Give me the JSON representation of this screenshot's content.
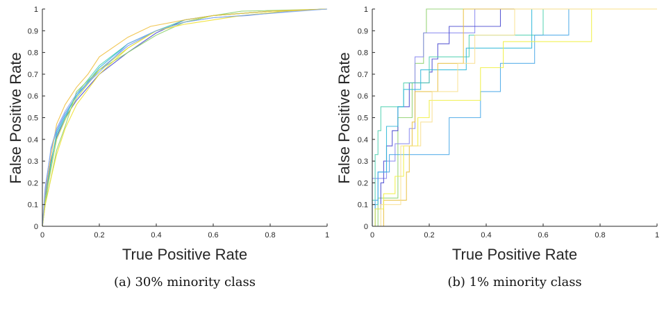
{
  "chart_data": [
    {
      "type": "line",
      "caption": "(a) 30% minority class",
      "xlabel": "True Positive Rate",
      "ylabel": "False Positive Rate",
      "xlim": [
        0,
        1
      ],
      "ylim": [
        0,
        1
      ],
      "xticks": [
        "0",
        "0.2",
        "0.4",
        "0.6",
        "0.8",
        "1"
      ],
      "yticks": [
        "0",
        "0.1",
        "0.2",
        "0.3",
        "0.4",
        "0.5",
        "0.6",
        "0.7",
        "0.8",
        "0.9",
        "1"
      ],
      "grid": false,
      "step": false,
      "series": [
        {
          "color": "#4a4ad0",
          "points": [
            [
              0,
              0
            ],
            [
              0.01,
              0.14
            ],
            [
              0.03,
              0.3
            ],
            [
              0.05,
              0.41
            ],
            [
              0.08,
              0.5
            ],
            [
              0.12,
              0.58
            ],
            [
              0.2,
              0.7
            ],
            [
              0.3,
              0.8
            ],
            [
              0.4,
              0.89
            ],
            [
              0.5,
              0.95
            ],
            [
              0.6,
              0.97
            ],
            [
              0.8,
              0.99
            ],
            [
              1,
              1
            ]
          ]
        },
        {
          "color": "#6a8ef0",
          "points": [
            [
              0,
              0
            ],
            [
              0.01,
              0.18
            ],
            [
              0.03,
              0.35
            ],
            [
              0.05,
              0.44
            ],
            [
              0.08,
              0.52
            ],
            [
              0.12,
              0.6
            ],
            [
              0.2,
              0.72
            ],
            [
              0.3,
              0.83
            ],
            [
              0.4,
              0.9
            ],
            [
              0.5,
              0.94
            ],
            [
              0.6,
              0.96
            ],
            [
              0.72,
              0.97
            ],
            [
              0.87,
              0.99
            ],
            [
              1,
              1
            ]
          ]
        },
        {
          "color": "#2ab0e0",
          "points": [
            [
              0,
              0
            ],
            [
              0.01,
              0.1
            ],
            [
              0.03,
              0.28
            ],
            [
              0.05,
              0.43
            ],
            [
              0.08,
              0.51
            ],
            [
              0.12,
              0.6
            ],
            [
              0.2,
              0.73
            ],
            [
              0.3,
              0.84
            ],
            [
              0.4,
              0.9
            ],
            [
              0.5,
              0.94
            ],
            [
              0.6,
              0.97
            ],
            [
              0.8,
              0.99
            ],
            [
              1,
              1
            ]
          ]
        },
        {
          "color": "#50d0b0",
          "points": [
            [
              0,
              0
            ],
            [
              0.01,
              0.12
            ],
            [
              0.03,
              0.29
            ],
            [
              0.05,
              0.42
            ],
            [
              0.08,
              0.5
            ],
            [
              0.12,
              0.61
            ],
            [
              0.2,
              0.74
            ],
            [
              0.3,
              0.84
            ],
            [
              0.4,
              0.9
            ],
            [
              0.5,
              0.95
            ],
            [
              0.6,
              0.97
            ],
            [
              0.8,
              0.99
            ],
            [
              1,
              1
            ]
          ]
        },
        {
          "color": "#8fd16e",
          "points": [
            [
              0,
              0
            ],
            [
              0.01,
              0.1
            ],
            [
              0.03,
              0.22
            ],
            [
              0.05,
              0.35
            ],
            [
              0.08,
              0.46
            ],
            [
              0.12,
              0.62
            ],
            [
              0.2,
              0.72
            ],
            [
              0.3,
              0.8
            ],
            [
              0.4,
              0.88
            ],
            [
              0.5,
              0.94
            ],
            [
              0.6,
              0.97
            ],
            [
              0.7,
              0.99
            ],
            [
              1,
              1
            ]
          ]
        },
        {
          "color": "#b8d84a",
          "points": [
            [
              0,
              0
            ],
            [
              0.01,
              0.12
            ],
            [
              0.03,
              0.26
            ],
            [
              0.05,
              0.4
            ],
            [
              0.08,
              0.49
            ],
            [
              0.12,
              0.59
            ],
            [
              0.2,
              0.72
            ],
            [
              0.3,
              0.82
            ],
            [
              0.4,
              0.9
            ],
            [
              0.5,
              0.94
            ],
            [
              0.6,
              0.97
            ],
            [
              0.8,
              0.99
            ],
            [
              1,
              1
            ]
          ]
        },
        {
          "color": "#f0e030",
          "points": [
            [
              0,
              0
            ],
            [
              0.01,
              0.1
            ],
            [
              0.03,
              0.22
            ],
            [
              0.05,
              0.33
            ],
            [
              0.08,
              0.45
            ],
            [
              0.12,
              0.56
            ],
            [
              0.2,
              0.7
            ],
            [
              0.3,
              0.82
            ],
            [
              0.4,
              0.9
            ],
            [
              0.5,
              0.93
            ],
            [
              0.6,
              0.95
            ],
            [
              0.7,
              0.97
            ],
            [
              0.85,
              0.99
            ],
            [
              1,
              1
            ]
          ]
        },
        {
          "color": "#f0c040",
          "points": [
            [
              0,
              0
            ],
            [
              0.01,
              0.15
            ],
            [
              0.03,
              0.32
            ],
            [
              0.05,
              0.47
            ],
            [
              0.08,
              0.56
            ],
            [
              0.12,
              0.64
            ],
            [
              0.16,
              0.7
            ],
            [
              0.2,
              0.78
            ],
            [
              0.3,
              0.87
            ],
            [
              0.38,
              0.92
            ],
            [
              0.5,
              0.95
            ],
            [
              0.6,
              0.97
            ],
            [
              0.8,
              0.99
            ],
            [
              1,
              1
            ]
          ]
        },
        {
          "color": "#80a8f0",
          "points": [
            [
              0,
              0
            ],
            [
              0.01,
              0.16
            ],
            [
              0.03,
              0.36
            ],
            [
              0.05,
              0.45
            ],
            [
              0.08,
              0.53
            ],
            [
              0.12,
              0.61
            ],
            [
              0.2,
              0.71
            ],
            [
              0.3,
              0.84
            ],
            [
              0.4,
              0.9
            ],
            [
              0.5,
              0.94
            ],
            [
              0.6,
              0.96
            ],
            [
              0.8,
              0.98
            ],
            [
              1,
              1
            ]
          ]
        }
      ]
    },
    {
      "type": "line",
      "caption": "(b) 1% minority class",
      "xlabel": "True Positive Rate",
      "ylabel": "False Positive Rate",
      "xlim": [
        0,
        1
      ],
      "ylim": [
        0,
        1
      ],
      "xticks": [
        "0",
        "0.2",
        "0.4",
        "0.6",
        "0.8",
        "1"
      ],
      "yticks": [
        "0",
        "0.1",
        "0.2",
        "0.3",
        "0.4",
        "0.5",
        "0.6",
        "0.7",
        "0.8",
        "0.9",
        "1"
      ],
      "grid": false,
      "step": true,
      "series": [
        {
          "color": "#8fd16e",
          "points": [
            [
              0.02,
              0
            ],
            [
              0.02,
              0.13
            ],
            [
              0.09,
              0.5
            ],
            [
              0.14,
              0.66
            ],
            [
              0.15,
              0.75
            ],
            [
              0.18,
              0.89
            ],
            [
              0.19,
              1
            ],
            [
              1,
              1
            ]
          ]
        },
        {
          "color": "#8a8af0",
          "points": [
            [
              0,
              0
            ],
            [
              0,
              0.22
            ],
            [
              0.05,
              0.3
            ],
            [
              0.08,
              0.38
            ],
            [
              0.13,
              0.45
            ],
            [
              0.15,
              0.78
            ],
            [
              0.18,
              0.89
            ],
            [
              0.36,
              1
            ],
            [
              1,
              1
            ]
          ]
        },
        {
          "color": "#4a4ad0",
          "points": [
            [
              0.01,
              0
            ],
            [
              0.01,
              0.08
            ],
            [
              0.03,
              0.2
            ],
            [
              0.04,
              0.3
            ],
            [
              0.05,
              0.37
            ],
            [
              0.07,
              0.44
            ],
            [
              0.09,
              0.55
            ],
            [
              0.13,
              0.66
            ],
            [
              0.2,
              0.71
            ],
            [
              0.21,
              0.77
            ],
            [
              0.23,
              0.84
            ],
            [
              0.27,
              0.92
            ],
            [
              0.45,
              1
            ],
            [
              1,
              1
            ]
          ]
        },
        {
          "color": "#50d0b0",
          "points": [
            [
              0,
              0
            ],
            [
              0,
              0.12
            ],
            [
              0.01,
              0.33
            ],
            [
              0.02,
              0.44
            ],
            [
              0.03,
              0.55
            ],
            [
              0.11,
              0.66
            ],
            [
              0.2,
              0.78
            ],
            [
              0.34,
              0.88
            ],
            [
              0.6,
              1
            ],
            [
              1,
              1
            ]
          ]
        },
        {
          "color": "#30b8d8",
          "points": [
            [
              0,
              0
            ],
            [
              0.01,
              0.1
            ],
            [
              0.02,
              0.25
            ],
            [
              0.05,
              0.46
            ],
            [
              0.09,
              0.55
            ],
            [
              0.11,
              0.63
            ],
            [
              0.17,
              0.72
            ],
            [
              0.33,
              0.82
            ],
            [
              0.56,
              1
            ],
            [
              1,
              1
            ]
          ]
        },
        {
          "color": "#4aa8e8",
          "points": [
            [
              0,
              0
            ],
            [
              0.01,
              0.12
            ],
            [
              0.02,
              0.25
            ],
            [
              0.06,
              0.33
            ],
            [
              0.27,
              0.5
            ],
            [
              0.38,
              0.62
            ],
            [
              0.45,
              0.75
            ],
            [
              0.57,
              0.88
            ],
            [
              0.69,
              1
            ],
            [
              1,
              1
            ]
          ]
        },
        {
          "color": "#e8c040",
          "points": [
            [
              0.04,
              0
            ],
            [
              0.04,
              0.12
            ],
            [
              0.12,
              0.25
            ],
            [
              0.13,
              0.37
            ],
            [
              0.14,
              0.48
            ],
            [
              0.15,
              0.62
            ],
            [
              0.23,
              0.75
            ],
            [
              0.32,
              0.88
            ],
            [
              0.32,
              1
            ],
            [
              1,
              1
            ]
          ]
        },
        {
          "color": "#f0f040",
          "points": [
            [
              0.01,
              0
            ],
            [
              0.01,
              0.08
            ],
            [
              0.04,
              0.15
            ],
            [
              0.08,
              0.23
            ],
            [
              0.11,
              0.37
            ],
            [
              0.16,
              0.5
            ],
            [
              0.2,
              0.58
            ],
            [
              0.38,
              0.73
            ],
            [
              0.46,
              0.85
            ],
            [
              0.77,
              0.92
            ],
            [
              0.77,
              1
            ],
            [
              1,
              1
            ]
          ]
        },
        {
          "color": "#f8e090",
          "points": [
            [
              0.03,
              0
            ],
            [
              0.03,
              0.1
            ],
            [
              0.1,
              0.37
            ],
            [
              0.17,
              0.48
            ],
            [
              0.21,
              0.62
            ],
            [
              0.3,
              0.75
            ],
            [
              0.36,
              0.88
            ],
            [
              0.5,
              1
            ],
            [
              1,
              1
            ]
          ]
        }
      ]
    }
  ]
}
